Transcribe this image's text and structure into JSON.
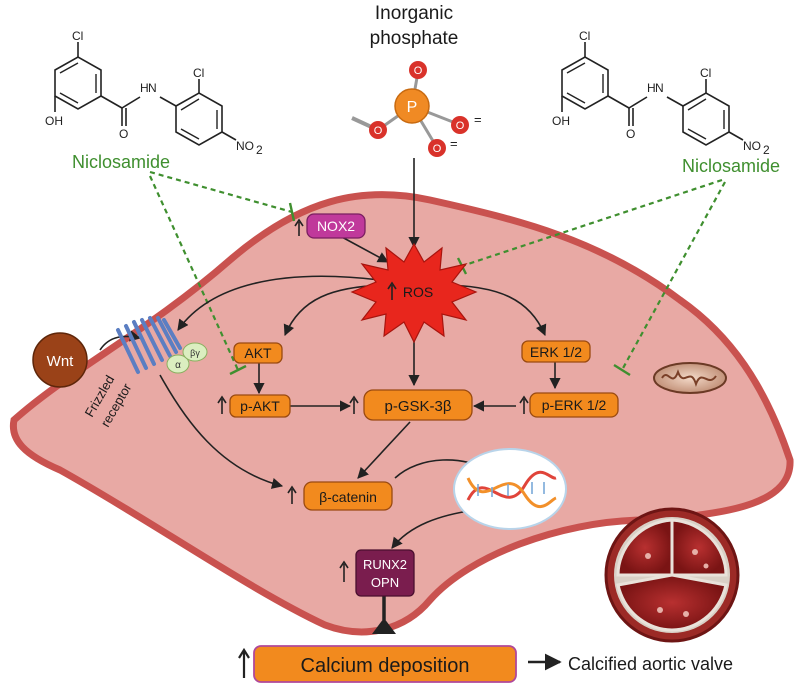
{
  "top": {
    "inorganic_line1": "Inorganic",
    "inorganic_line2": "phosphate",
    "phosphorus": "P",
    "oxygen": "O",
    "charge": "=",
    "cl": "Cl",
    "oh": "OH",
    "nh": "N",
    "h": "H",
    "no2": "NO",
    "sub2": "2"
  },
  "drug": {
    "left": "Niclosamide",
    "right": "Niclosamide"
  },
  "nodes": {
    "nox2": "NOX2",
    "ros": "ROS",
    "akt": "AKT",
    "p_akt": "p-AKT",
    "p_gsk": "p-GSK-3β",
    "erk": "ERK 1/2",
    "p_erk": "p-ERK 1/2",
    "beta_catenin": "β-catenin",
    "runx2": "RUNX2",
    "opn": "OPN",
    "wnt": "Wnt",
    "frizzled_line1": "Frizzled",
    "frizzled_line2": "receptor",
    "alpha": "α",
    "betagamma": "βγ"
  },
  "bottom": {
    "calcium": "Calcium deposition",
    "calcified": "Calcified aortic valve"
  },
  "colors": {
    "cell_fill": "#e8a9a4",
    "cell_border": "#c9524f",
    "node_fill": "#f28a1e",
    "node_border": "#9a4a10",
    "ros_fill": "#e8261d",
    "nox2_fill": "#c0399b",
    "runx2_fill": "#7a1d4e",
    "wnt_fill": "#9a4218",
    "receptor": "#5b7ec2",
    "inhibit": "#3f8f2f"
  }
}
